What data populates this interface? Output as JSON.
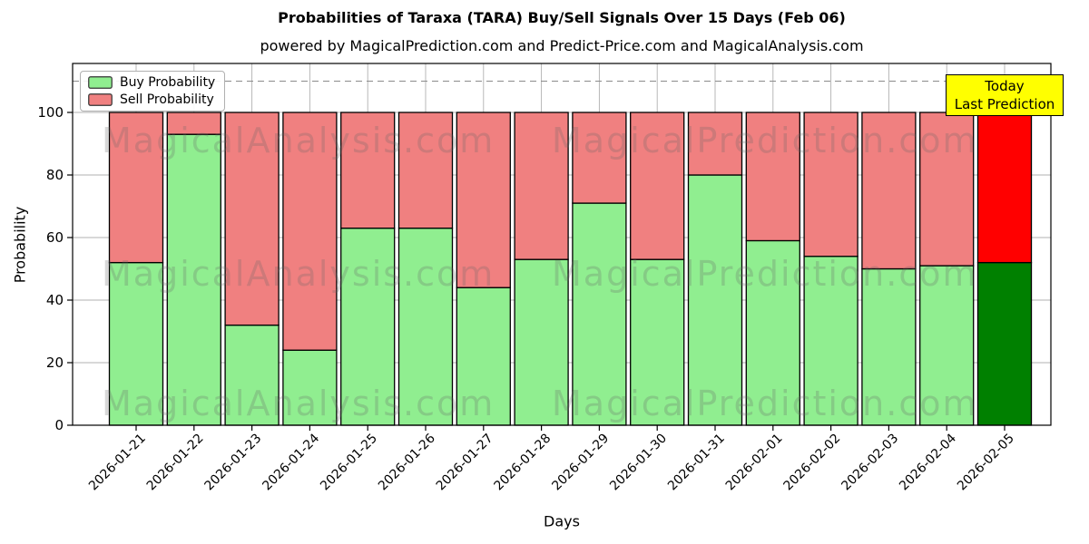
{
  "header": {
    "title": "Probabilities of Taraxa (TARA) Buy/Sell Signals Over 15 Days (Feb 06)",
    "subtitle": "powered by MagicalPrediction.com and Predict-Price.com and MagicalAnalysis.com"
  },
  "legend": {
    "items": [
      {
        "label": "Buy Probability",
        "color": "#90EE90"
      },
      {
        "label": "Sell Probability",
        "color": "#F08080"
      }
    ]
  },
  "annotation": {
    "line1": "Today",
    "line2": "Last Prediction",
    "bg_color": "#FFFF00"
  },
  "watermarks": {
    "left": "MagicalAnalysis.com",
    "right": "MagicalPrediction.com"
  },
  "axes": {
    "xlabel": "Days",
    "ylabel": "Probability",
    "yticks": [
      0,
      20,
      40,
      60,
      80,
      100
    ],
    "ylim": [
      0,
      115.7
    ],
    "dashed_line_y": 110,
    "grid": true
  },
  "chart_data": {
    "type": "bar",
    "stacked": true,
    "title": "Probabilities of Taraxa (TARA) Buy/Sell Signals Over 15 Days (Feb 06)",
    "xlabel": "Days",
    "ylabel": "Probability",
    "ylim": [
      0,
      115.7
    ],
    "legend_position": "upper left",
    "categories": [
      "2026-01-21",
      "2026-01-22",
      "2026-01-23",
      "2026-01-24",
      "2026-01-25",
      "2026-01-26",
      "2026-01-27",
      "2026-01-28",
      "2026-01-29",
      "2026-01-30",
      "2026-01-31",
      "2026-02-01",
      "2026-02-02",
      "2026-02-03",
      "2026-02-04",
      "2026-02-05"
    ],
    "series": [
      {
        "name": "Buy Probability",
        "values": [
          52,
          93,
          32,
          24,
          63,
          63,
          44,
          53,
          71,
          53,
          80,
          59,
          54,
          50,
          51,
          52
        ],
        "color": "#90EE90",
        "today_color": "#008000"
      },
      {
        "name": "Sell Probability",
        "values": [
          48,
          7,
          68,
          76,
          37,
          37,
          56,
          47,
          29,
          47,
          20,
          41,
          46,
          50,
          49,
          48
        ],
        "color": "#F08080",
        "today_color": "#FF0000"
      }
    ],
    "today_index": 15,
    "bar_edge_color": "#000000",
    "grid_color": "#b0b0b0",
    "dashed_line_color": "#8c8c8c"
  }
}
